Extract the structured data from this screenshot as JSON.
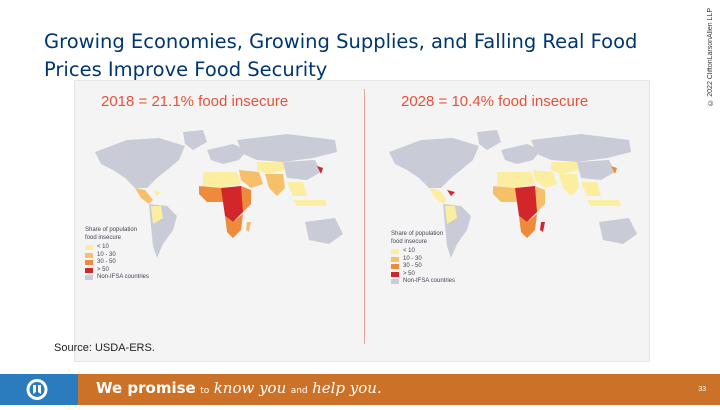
{
  "title": "Growing Economies, Growing Supplies, and Falling Real Food Prices Improve Food Security",
  "copyright": "© 2022 CliftonLarsonAllen LLP",
  "maps": [
    {
      "heading": "2018 = 21.1% food insecure"
    },
    {
      "heading": "2028 = 10.4% food insecure"
    }
  ],
  "legend": {
    "title_line1": "Share of population",
    "title_line2": "food insecure",
    "items": [
      {
        "label": "< 10",
        "color": "#fbeea0"
      },
      {
        "label": "10 - 30",
        "color": "#f6c06a"
      },
      {
        "label": "30 - 50",
        "color": "#ee8a3b"
      },
      {
        "label": "> 50",
        "color": "#d1262a"
      },
      {
        "label": "Non-IFSA countries",
        "color": "#c9ccd6"
      }
    ]
  },
  "source": "Source: USDA-ERS.",
  "footer": {
    "tagline_strong": "We promise",
    "tagline_to": "to",
    "tagline_know": "know you",
    "tagline_and": "and",
    "tagline_help": "help you.",
    "page_number": "33",
    "bar_color": "#cc7128",
    "logo_color": "#2b7bbf"
  }
}
